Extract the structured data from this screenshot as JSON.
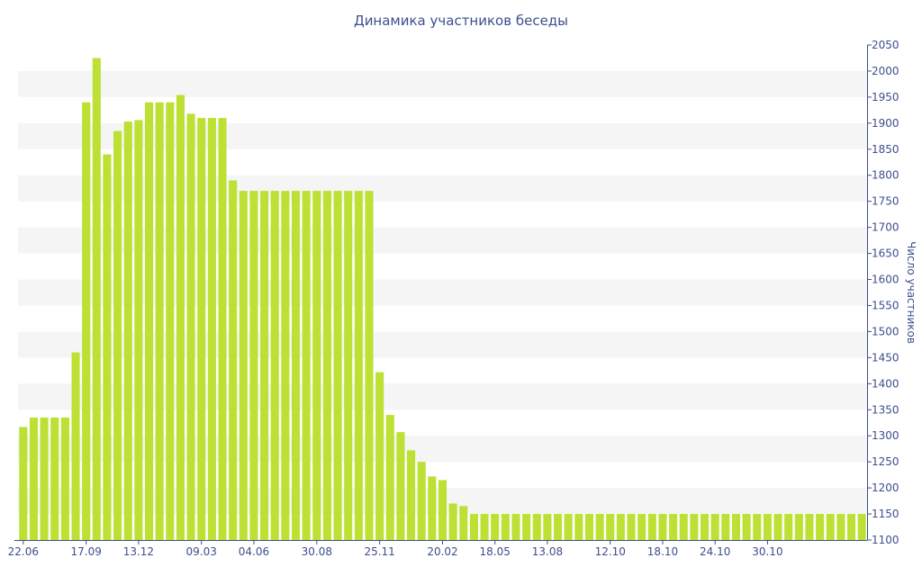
{
  "chart_data": {
    "type": "bar",
    "title": "Динамика участников беседы",
    "xlabel": "",
    "ylabel": "Число участников",
    "ylim": [
      1100,
      2050
    ],
    "y_ticks": [
      1100,
      1150,
      1200,
      1250,
      1300,
      1350,
      1400,
      1450,
      1500,
      1550,
      1600,
      1650,
      1700,
      1750,
      1800,
      1850,
      1900,
      1950,
      2000,
      2050
    ],
    "x_tick_labels": [
      {
        "label": "22.06",
        "index": 0
      },
      {
        "label": "17.09",
        "index": 6
      },
      {
        "label": "13.12",
        "index": 11
      },
      {
        "label": "09.03",
        "index": 17
      },
      {
        "label": "04.06",
        "index": 22
      },
      {
        "label": "30.08",
        "index": 28
      },
      {
        "label": "25.11",
        "index": 34
      },
      {
        "label": "20.02",
        "index": 40
      },
      {
        "label": "18.05",
        "index": 45
      },
      {
        "label": "13.08",
        "index": 50
      },
      {
        "label": "12.10",
        "index": 56
      },
      {
        "label": "18.10",
        "index": 61
      },
      {
        "label": "24.10",
        "index": 66
      },
      {
        "label": "30.10",
        "index": 71
      }
    ],
    "bar_color": "#bde034",
    "band_color": "#f5f5f5",
    "axis_color": "#3d4f8c",
    "grid": false,
    "legend": "none",
    "values": [
      1317,
      1335,
      1335,
      1335,
      1335,
      1460,
      1940,
      2025,
      1840,
      1885,
      1903,
      1906,
      1940,
      1940,
      1940,
      1954,
      1918,
      1910,
      1910,
      1910,
      1790,
      1770,
      1770,
      1770,
      1770,
      1770,
      1770,
      1770,
      1770,
      1770,
      1770,
      1770,
      1770,
      1770,
      1422,
      1340,
      1307,
      1272,
      1250,
      1222,
      1215,
      1170,
      1165,
      1150,
      1150,
      1150,
      1150,
      1150,
      1150,
      1150,
      1150,
      1150,
      1150,
      1150,
      1150,
      1150,
      1150,
      1150,
      1150,
      1150,
      1150,
      1150,
      1150,
      1150,
      1150,
      1150,
      1150,
      1150,
      1150,
      1150,
      1150,
      1150,
      1150,
      1150,
      1150,
      1150,
      1150,
      1150,
      1150,
      1150,
      1150
    ]
  }
}
